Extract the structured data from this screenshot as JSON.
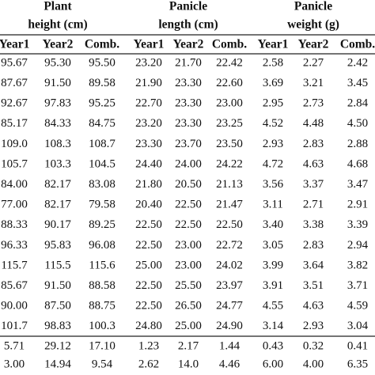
{
  "table": {
    "groups": [
      {
        "lines": [
          "Plant",
          "height (cm)"
        ]
      },
      {
        "lines": [
          "Panicle",
          "length (cm)"
        ]
      },
      {
        "lines": [
          "Panicle",
          "weight (g)"
        ]
      }
    ],
    "columns": [
      "Year1",
      "Year2",
      "Comb.",
      "Year1",
      "Year2",
      "Comb.",
      "Year1",
      "Year2",
      "Comb."
    ],
    "rows": [
      [
        "95.67",
        "95.30",
        "95.50",
        "23.20",
        "21.70",
        "22.42",
        "2.58",
        "2.27",
        "2.42"
      ],
      [
        "87.67",
        "91.50",
        "89.58",
        "21.90",
        "23.30",
        "22.60",
        "3.69",
        "3.21",
        "3.45"
      ],
      [
        "92.67",
        "97.83",
        "95.25",
        "22.70",
        "23.30",
        "23.00",
        "2.95",
        "2.73",
        "2.84"
      ],
      [
        "85.17",
        "84.33",
        "84.75",
        "23.20",
        "23.30",
        "23.25",
        "4.52",
        "4.48",
        "4.50"
      ],
      [
        "109.0",
        "108.3",
        "108.7",
        "23.30",
        "23.70",
        "23.50",
        "2.93",
        "2.83",
        "2.88"
      ],
      [
        "105.7",
        "103.3",
        "104.5",
        "24.40",
        "24.00",
        "24.22",
        "4.72",
        "4.63",
        "4.68"
      ],
      [
        "84.00",
        "82.17",
        "83.08",
        "21.80",
        "20.50",
        "21.13",
        "3.56",
        "3.37",
        "3.47"
      ],
      [
        "77.00",
        "82.17",
        "79.58",
        "20.40",
        "22.50",
        "21.47",
        "3.11",
        "2.71",
        "2.91"
      ],
      [
        "88.33",
        "90.17",
        "89.25",
        "22.50",
        "22.50",
        "22.50",
        "3.40",
        "3.38",
        "3.39"
      ],
      [
        "96.33",
        "95.83",
        "96.08",
        "22.50",
        "23.00",
        "22.72",
        "3.05",
        "2.83",
        "2.94"
      ],
      [
        "115.7",
        "115.5",
        "115.6",
        "25.00",
        "23.00",
        "24.02",
        "3.99",
        "3.64",
        "3.82"
      ],
      [
        "85.67",
        "91.50",
        "88.58",
        "22.50",
        "25.50",
        "23.97",
        "3.91",
        "3.51",
        "3.71"
      ],
      [
        "90.00",
        "87.50",
        "88.75",
        "22.50",
        "26.50",
        "24.77",
        "4.55",
        "4.63",
        "4.59"
      ],
      [
        "101.7",
        "98.83",
        "100.3",
        "24.80",
        "25.00",
        "24.90",
        "3.14",
        "2.93",
        "3.04"
      ]
    ],
    "summary_rows": [
      [
        "5.71",
        "29.12",
        "17.10",
        "1.23",
        "2.17",
        "1.44",
        "0.43",
        "0.32",
        "0.41"
      ],
      [
        "3.00",
        "14.94",
        "9.54",
        "2.62",
        "14.0",
        "4.46",
        "6.00",
        "4.00",
        "6.35"
      ]
    ]
  }
}
